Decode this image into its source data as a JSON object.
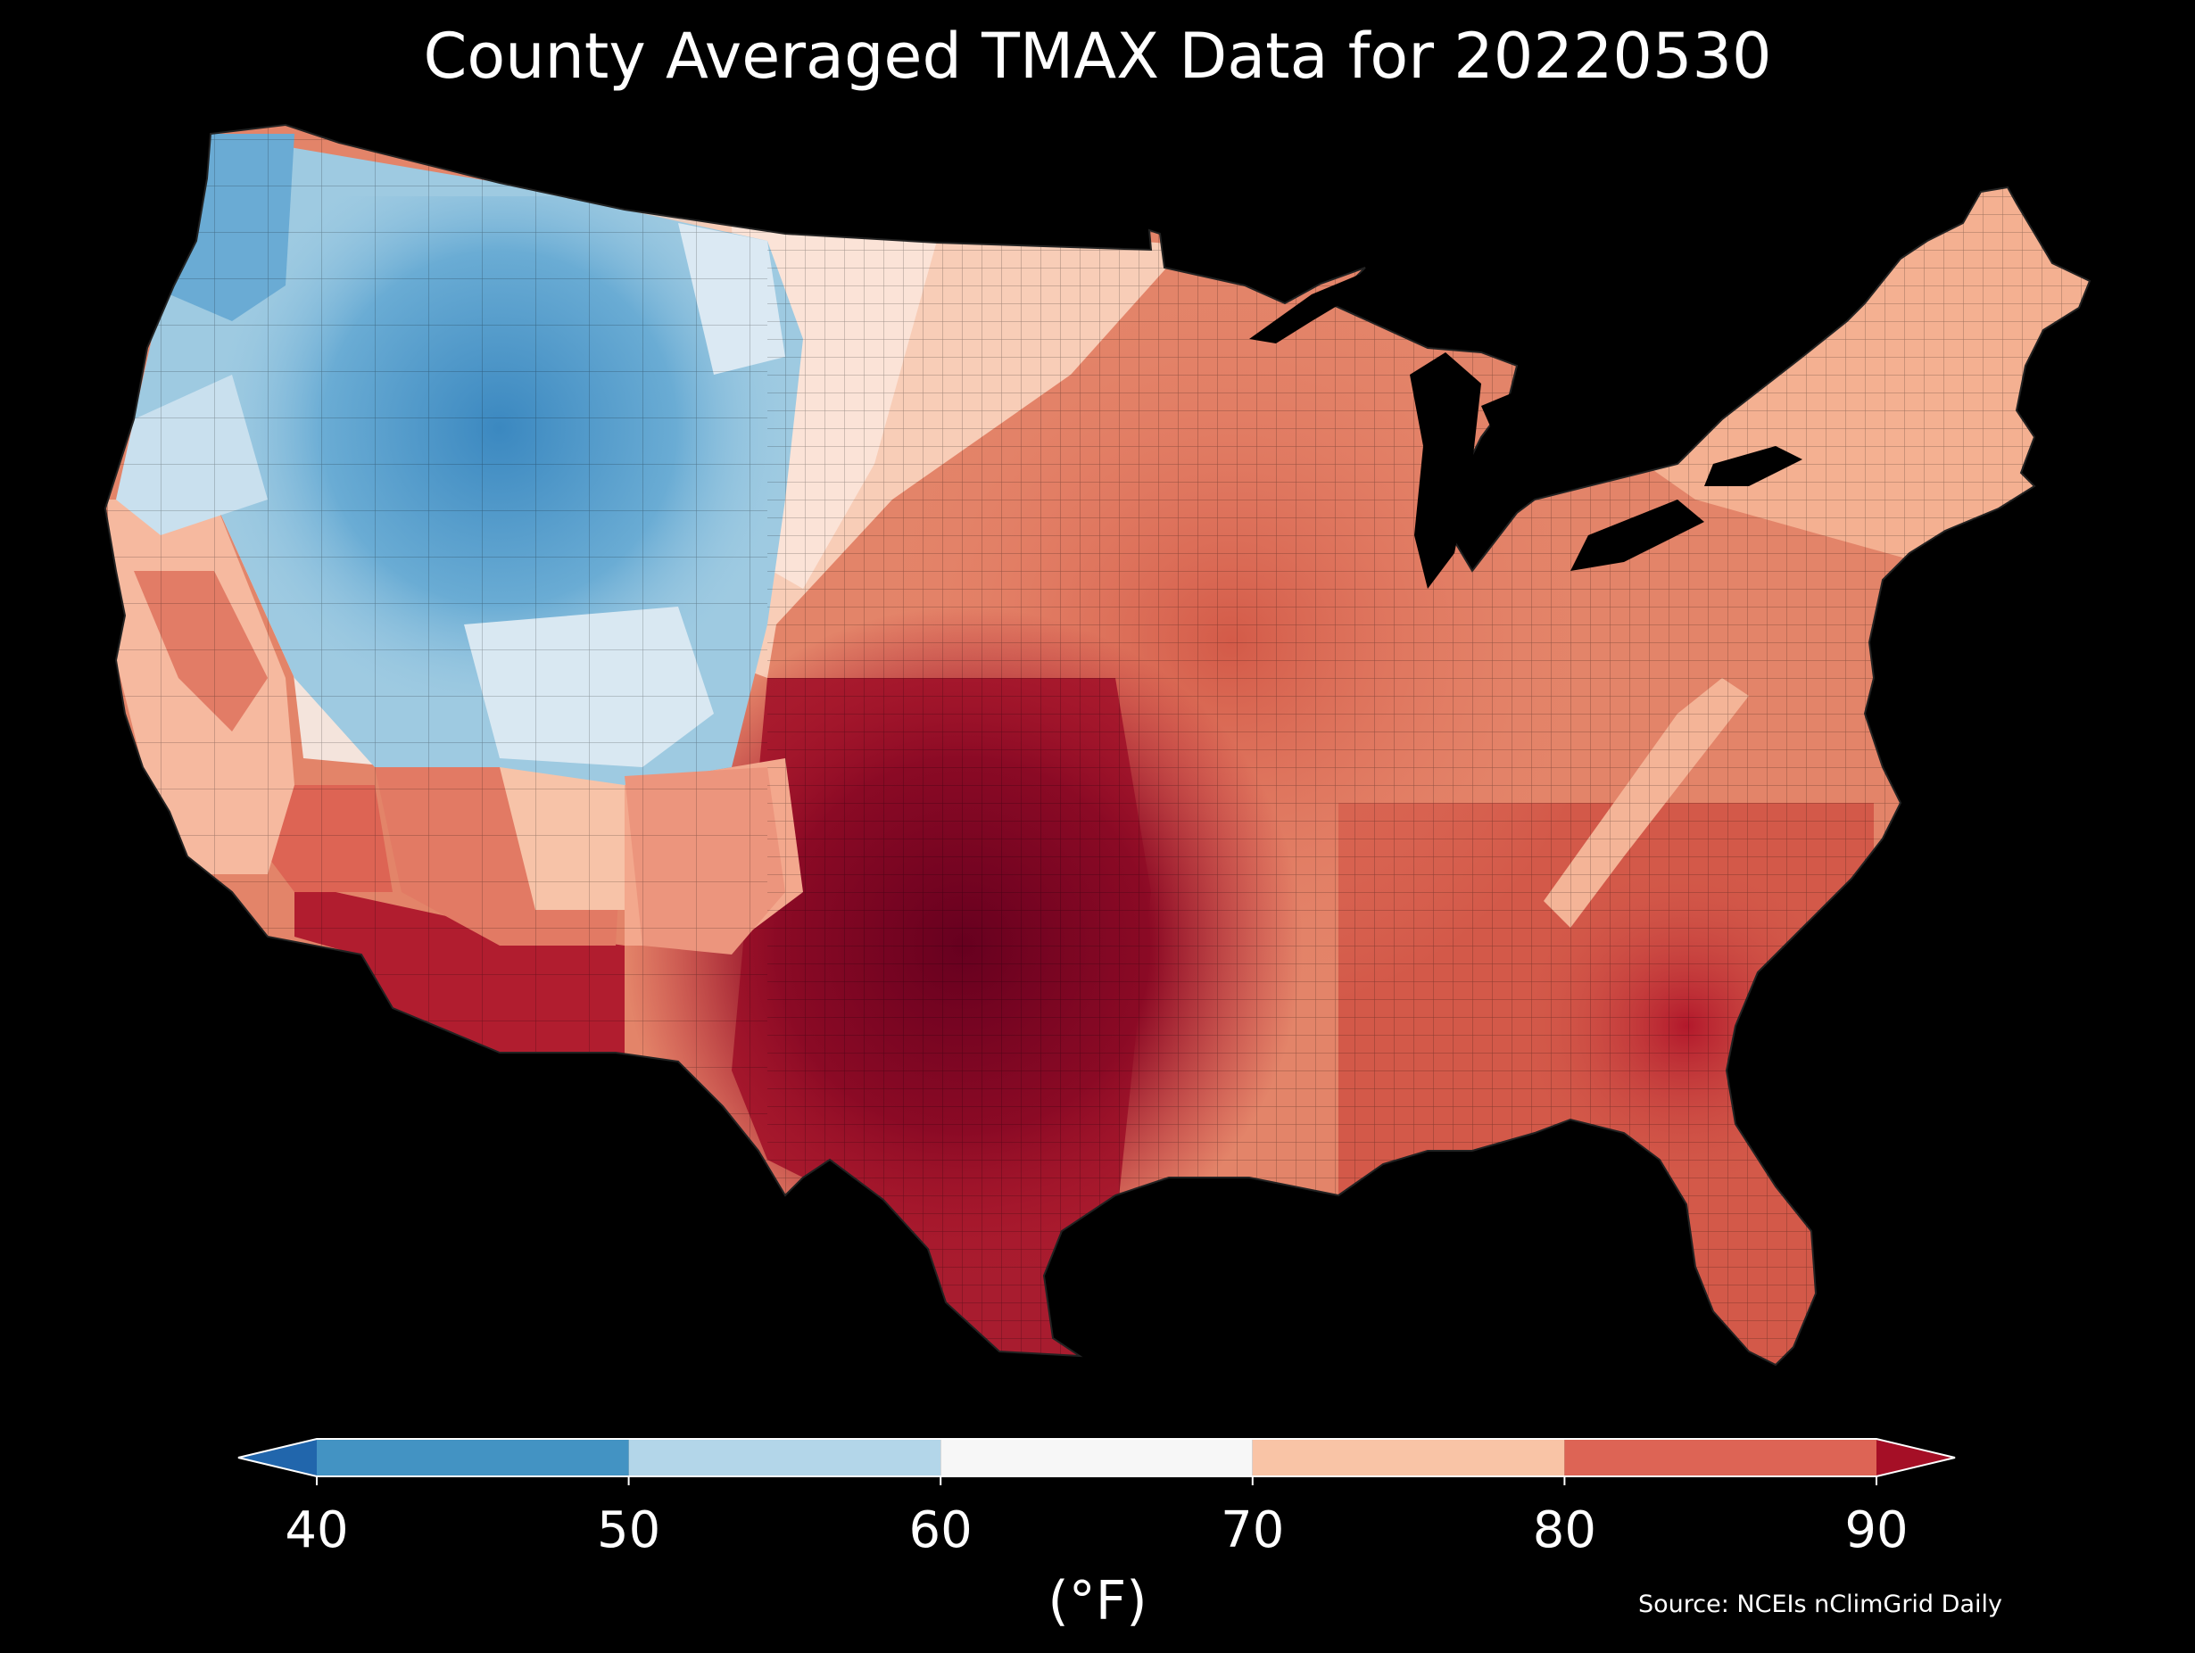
{
  "title": "County Averaged TMAX Data for 20220530",
  "source": "Source: NCEIs nClimGrid Daily",
  "colorbar": {
    "unit": "(°F)",
    "ticks": [
      "40",
      "50",
      "60",
      "70",
      "80",
      "90"
    ],
    "bins": [
      {
        "range": "<40",
        "color": "#2166ac"
      },
      {
        "range": "40-50",
        "color": "#4393c3"
      },
      {
        "range": "50-60",
        "color": "#b3d6e9"
      },
      {
        "range": "60-70",
        "color": "#f7f7f7"
      },
      {
        "range": "70-80",
        "color": "#f9c4a6"
      },
      {
        "range": "80-90",
        "color": "#dd6455"
      },
      {
        "range": ">90",
        "color": "#a50f26"
      }
    ],
    "extend": "both"
  },
  "map": {
    "type": "choropleth",
    "region": "Contiguous United States counties",
    "variable": "TMAX",
    "date": "20220530",
    "regional_pattern": [
      {
        "region": "Pacific Northwest",
        "bin": "40-60"
      },
      {
        "region": "Northern Rockies",
        "bin": "40-50"
      },
      {
        "region": "Great Basin",
        "bin": "50-70"
      },
      {
        "region": "Northern Plains",
        "bin": "60-80"
      },
      {
        "region": "Southwest desert",
        "bin": "80->90"
      },
      {
        "region": "Texas / Southern Plains",
        "bin": ">90"
      },
      {
        "region": "Midwest",
        "bin": "80-90"
      },
      {
        "region": "Northeast",
        "bin": "70-80"
      },
      {
        "region": "Southeast",
        "bin": "80->90"
      },
      {
        "region": "Appalachians",
        "bin": "70-80"
      }
    ]
  }
}
